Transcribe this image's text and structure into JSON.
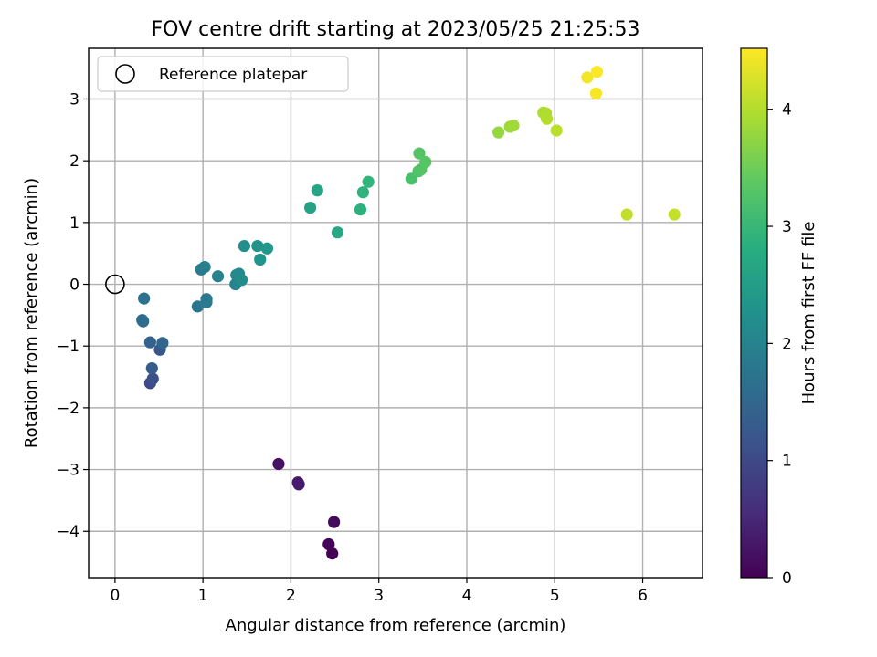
{
  "chart_data": {
    "type": "scatter",
    "title": "FOV centre drift starting at 2023/05/25 21:25:53",
    "xlabel": "Angular distance from reference (arcmin)",
    "ylabel": "Rotation from reference (arcmin)",
    "xlim": [
      -0.3,
      6.68
    ],
    "ylim": [
      -4.75,
      3.82
    ],
    "xticks": [
      0,
      1,
      2,
      3,
      4,
      5,
      6
    ],
    "yticks": [
      -4,
      -3,
      -2,
      -1,
      0,
      1,
      2,
      3
    ],
    "xtick_labels": [
      "0",
      "1",
      "2",
      "3",
      "4",
      "5",
      "6"
    ],
    "ytick_labels": [
      "−4",
      "−3",
      "−2",
      "−1",
      "0",
      "1",
      "2",
      "3"
    ],
    "grid": true,
    "legend": {
      "position": "top-left",
      "entries": [
        {
          "label": "Reference platepar",
          "marker": "open-circle"
        }
      ]
    },
    "reference_point": {
      "x": 0,
      "y": 0
    },
    "colorbar": {
      "label": "Hours from first FF file",
      "range": [
        0,
        4.52
      ],
      "ticks": [
        0,
        1,
        2,
        3,
        4
      ],
      "tick_labels": [
        "0",
        "1",
        "2",
        "3",
        "4"
      ],
      "colormap": "viridis"
    },
    "points": [
      {
        "x": 2.47,
        "y": -4.36,
        "c": 0.02
      },
      {
        "x": 2.43,
        "y": -4.21,
        "c": 0.05
      },
      {
        "x": 2.49,
        "y": -3.85,
        "c": 0.12
      },
      {
        "x": 1.86,
        "y": -2.91,
        "c": 0.2
      },
      {
        "x": 2.08,
        "y": -3.21,
        "c": 0.3
      },
      {
        "x": 2.09,
        "y": -3.24,
        "c": 0.33
      },
      {
        "x": 0.4,
        "y": -1.6,
        "c": 1.0
      },
      {
        "x": 0.43,
        "y": -1.53,
        "c": 1.1
      },
      {
        "x": 0.51,
        "y": -1.06,
        "c": 1.2
      },
      {
        "x": 0.42,
        "y": -1.36,
        "c": 1.3
      },
      {
        "x": 0.4,
        "y": -0.94,
        "c": 1.4
      },
      {
        "x": 0.54,
        "y": -0.95,
        "c": 1.45
      },
      {
        "x": 0.31,
        "y": -0.58,
        "c": 1.55
      },
      {
        "x": 0.32,
        "y": -0.6,
        "c": 1.6
      },
      {
        "x": 0.33,
        "y": -0.23,
        "c": 1.7
      },
      {
        "x": 0.94,
        "y": -0.36,
        "c": 1.75
      },
      {
        "x": 1.04,
        "y": -0.24,
        "c": 1.8
      },
      {
        "x": 1.04,
        "y": -0.29,
        "c": 1.85
      },
      {
        "x": 0.98,
        "y": 0.24,
        "c": 1.9
      },
      {
        "x": 1.02,
        "y": 0.28,
        "c": 1.95
      },
      {
        "x": 1.17,
        "y": 0.13,
        "c": 2.0
      },
      {
        "x": 1.37,
        "y": 0.0,
        "c": 2.05
      },
      {
        "x": 1.38,
        "y": 0.15,
        "c": 2.1
      },
      {
        "x": 1.41,
        "y": 0.17,
        "c": 2.15
      },
      {
        "x": 1.44,
        "y": 0.07,
        "c": 2.2
      },
      {
        "x": 1.47,
        "y": 0.62,
        "c": 2.25
      },
      {
        "x": 1.62,
        "y": 0.62,
        "c": 2.3
      },
      {
        "x": 1.65,
        "y": 0.4,
        "c": 2.35
      },
      {
        "x": 1.73,
        "y": 0.58,
        "c": 2.4
      },
      {
        "x": 2.22,
        "y": 1.24,
        "c": 2.6
      },
      {
        "x": 2.3,
        "y": 1.52,
        "c": 2.65
      },
      {
        "x": 2.53,
        "y": 0.84,
        "c": 2.7
      },
      {
        "x": 2.79,
        "y": 1.21,
        "c": 2.85
      },
      {
        "x": 2.82,
        "y": 1.49,
        "c": 2.9
      },
      {
        "x": 2.88,
        "y": 1.66,
        "c": 2.95
      },
      {
        "x": 3.37,
        "y": 1.71,
        "c": 3.2
      },
      {
        "x": 3.45,
        "y": 1.83,
        "c": 3.25
      },
      {
        "x": 3.48,
        "y": 1.86,
        "c": 3.28
      },
      {
        "x": 3.46,
        "y": 2.12,
        "c": 3.3
      },
      {
        "x": 3.53,
        "y": 1.98,
        "c": 3.32
      },
      {
        "x": 4.36,
        "y": 2.46,
        "c": 3.8
      },
      {
        "x": 4.49,
        "y": 2.55,
        "c": 3.85
      },
      {
        "x": 4.53,
        "y": 2.57,
        "c": 3.87
      },
      {
        "x": 4.87,
        "y": 2.78,
        "c": 3.95
      },
      {
        "x": 4.9,
        "y": 2.77,
        "c": 3.97
      },
      {
        "x": 4.91,
        "y": 2.68,
        "c": 4.0
      },
      {
        "x": 5.02,
        "y": 2.49,
        "c": 4.05
      },
      {
        "x": 5.82,
        "y": 1.13,
        "c": 4.1
      },
      {
        "x": 6.36,
        "y": 1.13,
        "c": 4.12
      },
      {
        "x": 5.37,
        "y": 3.35,
        "c": 4.45
      },
      {
        "x": 5.48,
        "y": 3.44,
        "c": 4.5
      },
      {
        "x": 5.47,
        "y": 3.09,
        "c": 4.48
      }
    ]
  }
}
